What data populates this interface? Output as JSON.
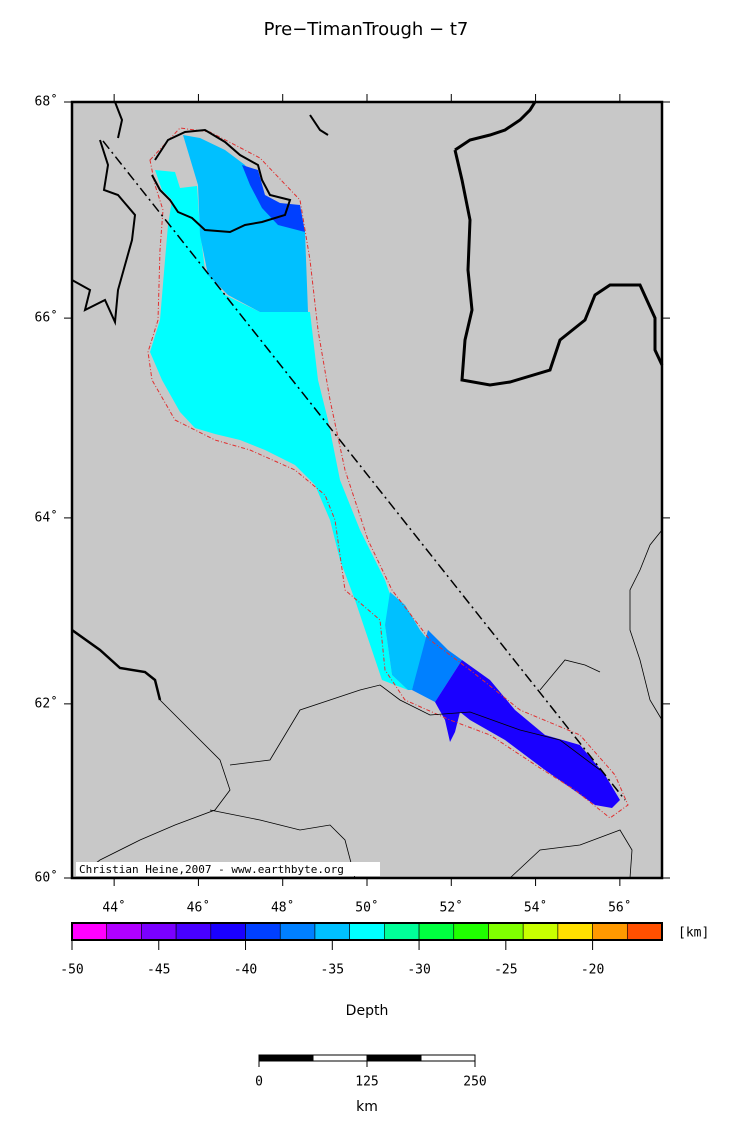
{
  "map": {
    "title": "Pre−TimanTrough − t7",
    "credit": "Christian Heine,2007 - www.earthbyte.org",
    "lonlim": [
      43,
      57
    ],
    "latlim": [
      60,
      68
    ],
    "lonticks": [
      {
        "value": 44,
        "label": "44˚"
      },
      {
        "value": 46,
        "label": "46˚"
      },
      {
        "value": 48,
        "label": "48˚"
      },
      {
        "value": 50,
        "label": "50˚"
      },
      {
        "value": 52,
        "label": "52˚"
      },
      {
        "value": 54,
        "label": "54˚"
      },
      {
        "value": 56,
        "label": "56˚"
      }
    ],
    "latticks": [
      {
        "value": 60,
        "label": "60˚"
      },
      {
        "value": 62,
        "label": "62˚"
      },
      {
        "value": 64,
        "label": "64˚"
      },
      {
        "value": 66,
        "label": "66˚"
      },
      {
        "value": 68,
        "label": "68˚"
      }
    ],
    "regions": [
      {
        "depth": -33
      },
      {
        "depth": -35
      },
      {
        "depth": -39
      },
      {
        "depth": -35
      },
      {
        "depth": -37
      },
      {
        "depth": -41
      }
    ]
  },
  "colorbar": {
    "label": "Depth",
    "unit": "[km]",
    "range": [
      -50,
      -16
    ],
    "ticks": [
      -50,
      -45,
      -40,
      -35,
      -30,
      -25,
      -20
    ],
    "colors": [
      "#ff00ff",
      "#b000ff",
      "#7a00ff",
      "#4800ff",
      "#1a00ff",
      "#0040ff",
      "#0080ff",
      "#00c0ff",
      "#00ffff",
      "#00ff99",
      "#00ff40",
      "#20ff00",
      "#80ff00",
      "#c8ff00",
      "#ffe000",
      "#ff9900",
      "#ff5000"
    ]
  },
  "scalebar": {
    "range": [
      0,
      250
    ],
    "ticks": [
      0,
      125,
      250
    ],
    "unit": "km"
  }
}
